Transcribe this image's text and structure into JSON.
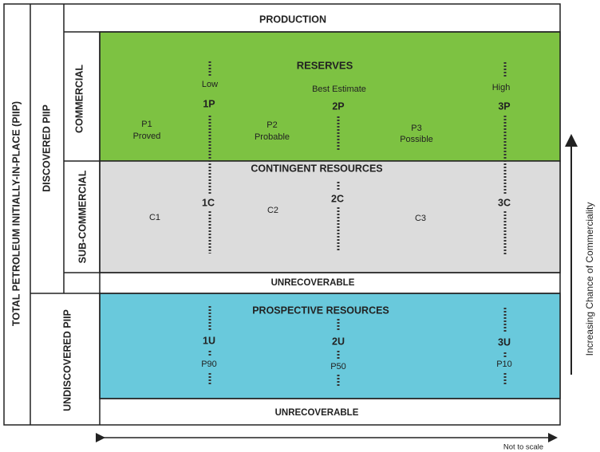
{
  "production": "PRODUCTION",
  "total_piip": "TOTAL PETROLEUM INITIALLY-IN-PLACE (PIIP)",
  "discovered_piip": "DISCOVERED PIIP",
  "undiscovered_piip": "UNDISCOVERED PIIP",
  "commercial": "COMMERCIAL",
  "sub_commercial": "SUB-COMMERCIAL",
  "reserves": {
    "title": "RESERVES",
    "low": "Low",
    "best": "Best Estimate",
    "high": "High",
    "c1": "1P",
    "c2": "2P",
    "c3": "3P",
    "p1": "P1",
    "p1_name": "Proved",
    "p2": "P2",
    "p2_name": "Probable",
    "p3": "P3",
    "p3_name": "Possible"
  },
  "contingent": {
    "title": "CONTINGENT RESOURCES",
    "c1": "1C",
    "c2": "2C",
    "c3": "3C",
    "k1": "C1",
    "k2": "C2",
    "k3": "C3"
  },
  "unrecoverable_discovered": "UNRECOVERABLE",
  "prospective": {
    "title": "PROSPECTIVE RESOURCES",
    "c1": "1U",
    "c2": "2U",
    "c3": "3U",
    "p90": "P90",
    "p50": "P50",
    "p10": "P10"
  },
  "unrecoverable_undiscovered": "UNRECOVERABLE",
  "commerciality_axis": "Increasing Chance of Commerciality",
  "scale_note": "Not to scale"
}
